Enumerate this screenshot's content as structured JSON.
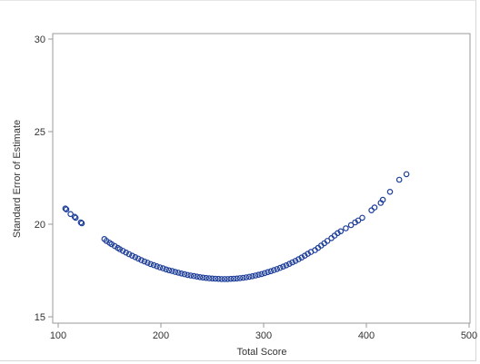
{
  "chart_data": {
    "type": "scatter",
    "xlabel": "Total Score",
    "ylabel": "Standard Error of Estimate",
    "xlim": [
      100,
      500
    ],
    "ylim": [
      15,
      30
    ],
    "xticks": [
      "100",
      "200",
      "300",
      "400",
      "500"
    ],
    "yticks": [
      "15",
      "20",
      "25",
      "30"
    ],
    "grid": false,
    "marker": "open-circle",
    "colors": {
      "marker": "#1f3f9a",
      "axis": "#999999",
      "text": "#333333"
    },
    "points": [
      [
        107,
        20.85
      ],
      [
        108,
        20.8
      ],
      [
        112,
        20.55
      ],
      [
        116,
        20.4
      ],
      [
        117,
        20.35
      ],
      [
        122,
        20.1
      ],
      [
        123,
        20.05
      ],
      [
        145,
        19.2
      ],
      [
        147,
        19.1
      ],
      [
        150,
        19.0
      ],
      [
        152,
        18.92
      ],
      [
        155,
        18.82
      ],
      [
        158,
        18.72
      ],
      [
        160,
        18.65
      ],
      [
        163,
        18.56
      ],
      [
        166,
        18.47
      ],
      [
        169,
        18.38
      ],
      [
        172,
        18.3
      ],
      [
        175,
        18.22
      ],
      [
        178,
        18.14
      ],
      [
        181,
        18.06
      ],
      [
        184,
        17.99
      ],
      [
        187,
        17.92
      ],
      [
        190,
        17.85
      ],
      [
        193,
        17.79
      ],
      [
        196,
        17.73
      ],
      [
        199,
        17.67
      ],
      [
        202,
        17.62
      ],
      [
        205,
        17.56
      ],
      [
        208,
        17.51
      ],
      [
        211,
        17.47
      ],
      [
        214,
        17.42
      ],
      [
        217,
        17.38
      ],
      [
        220,
        17.34
      ],
      [
        223,
        17.3
      ],
      [
        226,
        17.26
      ],
      [
        229,
        17.23
      ],
      [
        232,
        17.2
      ],
      [
        235,
        17.17
      ],
      [
        238,
        17.14
      ],
      [
        241,
        17.12
      ],
      [
        244,
        17.1
      ],
      [
        247,
        17.08
      ],
      [
        250,
        17.07
      ],
      [
        253,
        17.06
      ],
      [
        256,
        17.05
      ],
      [
        259,
        17.04
      ],
      [
        262,
        17.04
      ],
      [
        265,
        17.04
      ],
      [
        268,
        17.05
      ],
      [
        271,
        17.06
      ],
      [
        274,
        17.07
      ],
      [
        277,
        17.09
      ],
      [
        280,
        17.11
      ],
      [
        283,
        17.13
      ],
      [
        286,
        17.16
      ],
      [
        289,
        17.19
      ],
      [
        292,
        17.23
      ],
      [
        295,
        17.27
      ],
      [
        298,
        17.31
      ],
      [
        301,
        17.36
      ],
      [
        304,
        17.41
      ],
      [
        307,
        17.46
      ],
      [
        310,
        17.52
      ],
      [
        313,
        17.58
      ],
      [
        316,
        17.64
      ],
      [
        319,
        17.71
      ],
      [
        322,
        17.78
      ],
      [
        325,
        17.86
      ],
      [
        328,
        17.94
      ],
      [
        331,
        18.02
      ],
      [
        334,
        18.11
      ],
      [
        337,
        18.2
      ],
      [
        340,
        18.3
      ],
      [
        343,
        18.4
      ],
      [
        346,
        18.5
      ],
      [
        350,
        18.6
      ],
      [
        353,
        18.72
      ],
      [
        356,
        18.85
      ],
      [
        359,
        18.97
      ],
      [
        362,
        19.1
      ],
      [
        366,
        19.25
      ],
      [
        369,
        19.38
      ],
      [
        372,
        19.52
      ],
      [
        375,
        19.62
      ],
      [
        380,
        19.78
      ],
      [
        385,
        19.95
      ],
      [
        389,
        20.1
      ],
      [
        392,
        20.2
      ],
      [
        396,
        20.35
      ],
      [
        405,
        20.75
      ],
      [
        408,
        20.9
      ],
      [
        414,
        21.15
      ],
      [
        416,
        21.32
      ],
      [
        423,
        21.75
      ],
      [
        432,
        22.4
      ],
      [
        439,
        22.7
      ]
    ]
  }
}
